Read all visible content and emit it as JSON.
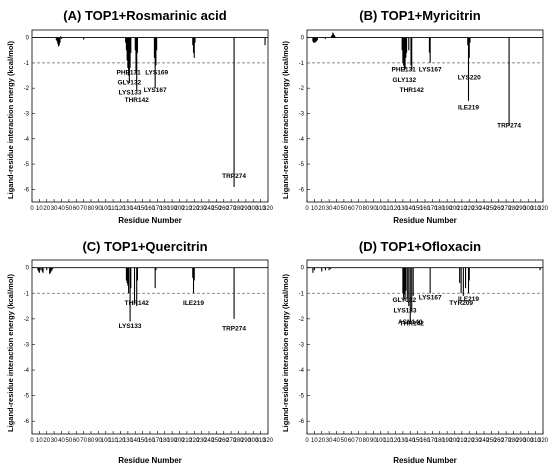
{
  "chart_data": [
    {
      "type": "bar",
      "title": "(A) TOP1+Rosmarinic acid",
      "xlabel": "Residue Number",
      "ylabel": "Ligand-residue interaction energy (kcal/mol)",
      "xlim": [
        0,
        320
      ],
      "ylim": [
        -6.5,
        0.3
      ],
      "xticks": [
        0,
        10,
        20,
        30,
        40,
        50,
        60,
        70,
        80,
        90,
        100,
        110,
        120,
        130,
        140,
        150,
        160,
        170,
        180,
        190,
        200,
        210,
        220,
        230,
        240,
        250,
        260,
        270,
        280,
        290,
        300,
        310,
        320
      ],
      "yticks": [
        0,
        -1,
        -2,
        -3,
        -4,
        -5,
        -6
      ],
      "reference_line": -1,
      "x": [
        33,
        34,
        35,
        36,
        37,
        38,
        39,
        40,
        70,
        127,
        128,
        129,
        130,
        131,
        132,
        133,
        134,
        140,
        141,
        142,
        143,
        166,
        167,
        168,
        169,
        218,
        219,
        220,
        221,
        274,
        316
      ],
      "values": [
        -0.1,
        -0.15,
        -0.25,
        -0.35,
        -0.3,
        -0.2,
        0.05,
        -0.05,
        -0.08,
        -0.2,
        -0.5,
        -0.9,
        -1.2,
        -1.5,
        -1.8,
        -1.2,
        -0.6,
        -0.5,
        -1.4,
        -2.1,
        -0.6,
        -0.8,
        -2.0,
        -1.1,
        -0.5,
        -0.3,
        -0.6,
        -0.8,
        -0.2,
        -5.9,
        -0.3
      ],
      "annotations": [
        {
          "text": "PHE131",
          "x": 131,
          "y": -1.45
        },
        {
          "text": "GLY132",
          "x": 132,
          "y": -1.85
        },
        {
          "text": "LYS133",
          "x": 133,
          "y": -2.25
        },
        {
          "text": "THR142",
          "x": 142,
          "y": -2.55
        },
        {
          "text": "LYS169",
          "x": 169,
          "y": -1.45
        },
        {
          "text": "LYS167",
          "x": 167,
          "y": -2.15
        },
        {
          "text": "TRP274",
          "x": 274,
          "y": -5.55
        }
      ]
    },
    {
      "type": "bar",
      "title": "(B) TOP1+Myricitrin",
      "xlabel": "Residue Number",
      "ylabel": "Ligand-residue interaction energy (kcal/mol)",
      "xlim": [
        0,
        320
      ],
      "ylim": [
        -6.5,
        0.3
      ],
      "xticks": [
        0,
        10,
        20,
        30,
        40,
        50,
        60,
        70,
        80,
        90,
        100,
        110,
        120,
        130,
        140,
        150,
        160,
        170,
        180,
        190,
        200,
        210,
        220,
        230,
        240,
        250,
        260,
        270,
        280,
        290,
        300,
        310,
        320
      ],
      "yticks": [
        0,
        -1,
        -2,
        -3,
        -4,
        -5,
        -6
      ],
      "reference_line": -1,
      "x": [
        8,
        9,
        10,
        11,
        12,
        13,
        14,
        25,
        33,
        34,
        35,
        36,
        37,
        38,
        129,
        130,
        131,
        132,
        133,
        134,
        135,
        138,
        141,
        142,
        166,
        167,
        218,
        219,
        220,
        221,
        274
      ],
      "values": [
        -0.15,
        -0.2,
        -0.2,
        -0.2,
        -0.15,
        -0.15,
        -0.1,
        -0.05,
        0.05,
        0.1,
        0.2,
        0.15,
        0.1,
        0.05,
        -0.5,
        -1.0,
        -1.1,
        -1.3,
        -1.25,
        -0.8,
        -0.6,
        -0.5,
        -1.1,
        -1.3,
        -0.6,
        -1.0,
        -0.3,
        -2.5,
        -0.8,
        -0.2,
        -3.5
      ],
      "annotations": [
        {
          "text": "PHE131",
          "x": 131,
          "y": -1.35
        },
        {
          "text": "GLY132",
          "x": 132,
          "y": -1.75
        },
        {
          "text": "LYS167",
          "x": 167,
          "y": -1.35
        },
        {
          "text": "THR142",
          "x": 142,
          "y": -2.15
        },
        {
          "text": "LYS220",
          "x": 220,
          "y": -1.65
        },
        {
          "text": "ILE219",
          "x": 219,
          "y": -2.85
        },
        {
          "text": "TRP274",
          "x": 274,
          "y": -3.55
        }
      ]
    },
    {
      "type": "bar",
      "title": "(C) TOP1+Quercitrin",
      "xlabel": "Residue Number",
      "ylabel": "Ligand-residue interaction energy (kcal/mol)",
      "xlim": [
        0,
        320
      ],
      "ylim": [
        -6.5,
        0.3
      ],
      "xticks": [
        0,
        10,
        20,
        30,
        40,
        50,
        60,
        70,
        80,
        90,
        100,
        110,
        120,
        130,
        140,
        150,
        160,
        170,
        180,
        190,
        200,
        210,
        220,
        230,
        240,
        250,
        260,
        270,
        280,
        290,
        300,
        310,
        320
      ],
      "yticks": [
        0,
        -1,
        -2,
        -3,
        -4,
        -5,
        -6
      ],
      "reference_line": -1,
      "x": [
        8,
        9,
        10,
        12,
        14,
        15,
        20,
        24,
        25,
        26,
        27,
        28,
        128,
        129,
        130,
        131,
        133,
        134,
        139,
        142,
        143,
        167,
        168,
        218,
        219,
        220,
        274
      ],
      "values": [
        -0.1,
        -0.15,
        -0.2,
        -0.1,
        -0.15,
        -0.2,
        -0.1,
        -0.25,
        -0.2,
        -0.15,
        -0.1,
        -0.05,
        -0.5,
        -0.6,
        -0.7,
        -1.0,
        -2.1,
        -0.8,
        -1.4,
        -1.5,
        -0.5,
        -0.8,
        -0.1,
        -0.4,
        -1.0,
        -0.5,
        -2.0
      ],
      "annotations": [
        {
          "text": "THR142",
          "x": 142,
          "y": -1.45
        },
        {
          "text": "ILE219",
          "x": 219,
          "y": -1.45
        },
        {
          "text": "LYS133",
          "x": 133,
          "y": -2.35
        },
        {
          "text": "TRP274",
          "x": 274,
          "y": -2.45
        }
      ]
    },
    {
      "type": "bar",
      "title": "(D) TOP1+Ofloxacin",
      "xlabel": "Residue Number",
      "ylabel": "Ligand-residue interaction energy (kcal/mol)",
      "xlim": [
        0,
        320
      ],
      "ylim": [
        -6.5,
        0.3
      ],
      "xticks": [
        0,
        10,
        20,
        30,
        40,
        50,
        60,
        70,
        80,
        90,
        100,
        110,
        120,
        130,
        140,
        150,
        160,
        170,
        180,
        190,
        200,
        210,
        220,
        230,
        240,
        250,
        260,
        270,
        280,
        290,
        300,
        310,
        320
      ],
      "yticks": [
        0,
        -1,
        -2,
        -3,
        -4,
        -5,
        -6
      ],
      "reference_line": -1,
      "x": [
        8,
        10,
        20,
        25,
        30,
        32,
        130,
        131,
        132,
        133,
        134,
        136,
        138,
        140,
        142,
        144,
        167,
        207,
        209,
        212,
        215,
        219,
        220,
        316
      ],
      "values": [
        -0.2,
        -0.1,
        -0.15,
        -0.1,
        -0.1,
        -0.05,
        -1.0,
        -1.2,
        -1.05,
        -1.3,
        -0.9,
        -1.2,
        -1.5,
        -2.1,
        -1.7,
        -1.1,
        -1.0,
        -0.6,
        -1.0,
        -1.1,
        -0.8,
        -1.0,
        -0.5,
        -0.1
      ],
      "annotations": [
        {
          "text": "GLY132",
          "x": 132,
          "y": -1.35
        },
        {
          "text": "LYS133",
          "x": 133,
          "y": -1.75
        },
        {
          "text": "ASN140",
          "x": 140,
          "y": -2.2
        },
        {
          "text": "LYS167",
          "x": 167,
          "y": -1.25
        },
        {
          "text": "TYR209",
          "x": 209,
          "y": -1.45
        },
        {
          "text": "ILE219",
          "x": 219,
          "y": -1.3
        },
        {
          "text": "THR142",
          "x": 142,
          "y": -2.25
        }
      ]
    }
  ]
}
